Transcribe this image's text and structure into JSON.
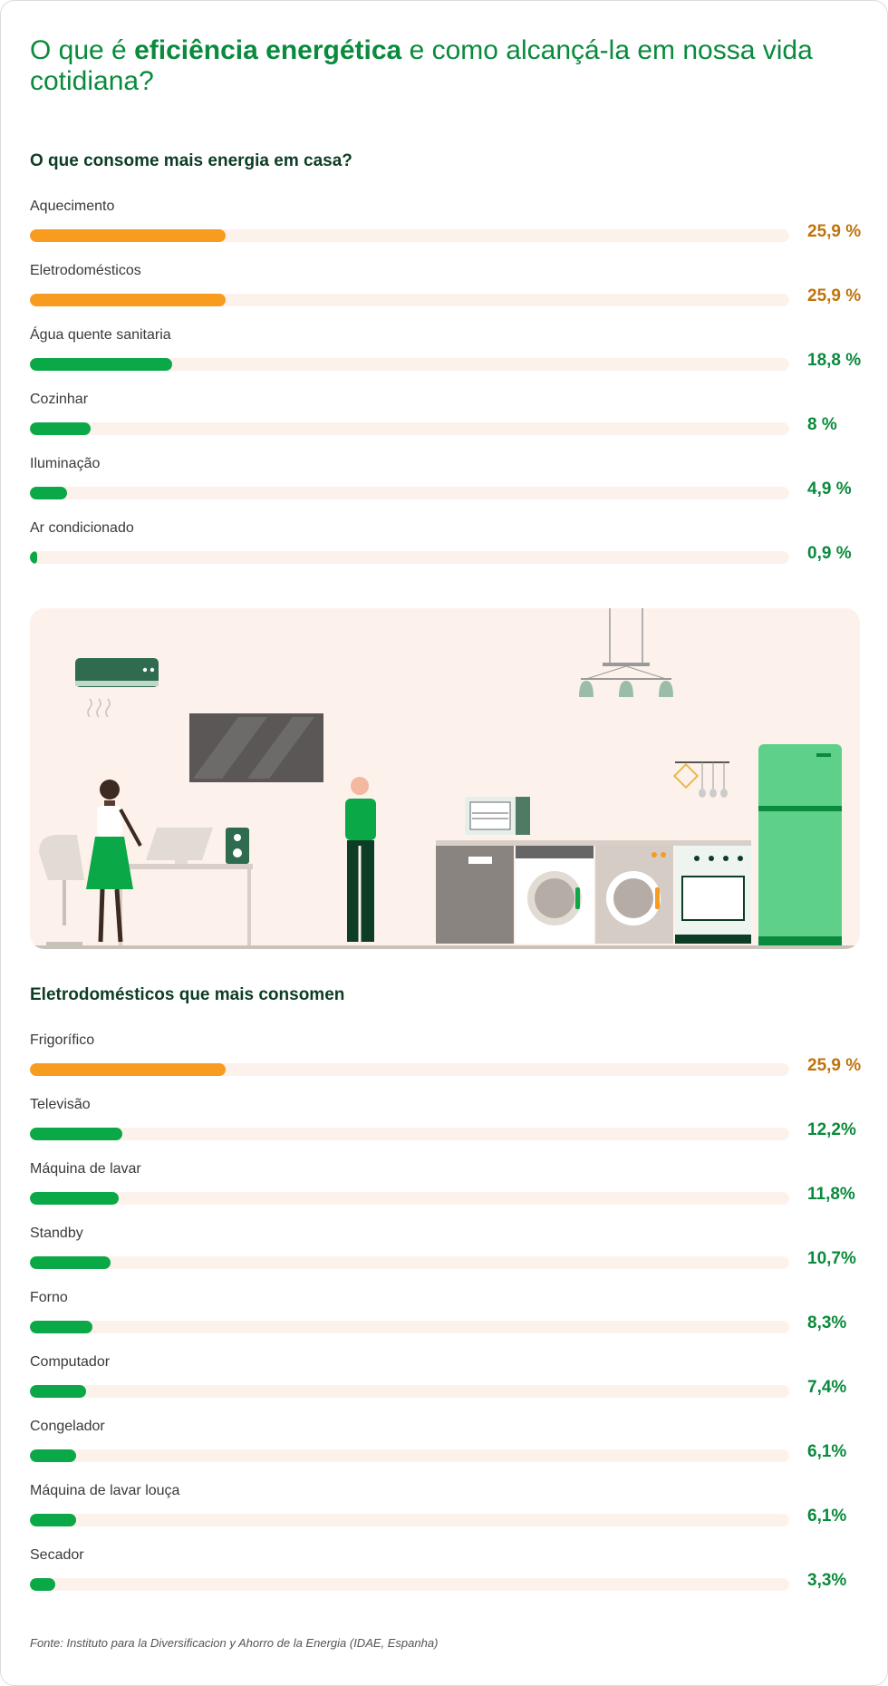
{
  "header": {
    "title_pre": "O que é ",
    "title_bold": "eficiência energética",
    "title_post": " e como alcançá-la em nossa vida cotidiana?"
  },
  "colors": {
    "highlight": "#f79c1e",
    "normal": "#0aa846",
    "track": "#fdf2eb",
    "highlight_text": "#c0730c",
    "normal_text": "#0a8a3c"
  },
  "chart_data": [
    {
      "type": "bar",
      "title": "O que consome mais energia em casa?",
      "orientation": "horizontal",
      "categories": [
        "Aquecimento",
        "Eletrodomésticos",
        "Água quente sanitaria",
        "Cozinhar",
        "Iluminação",
        "Ar condicionado"
      ],
      "values": [
        25.9,
        25.9,
        18.8,
        8,
        4.9,
        0.9
      ],
      "value_labels": [
        "25,9 %",
        "25,9 %",
        "18,8 %",
        "8 %",
        "4,9 %",
        "0,9 %"
      ],
      "highlight": [
        true,
        true,
        false,
        false,
        false,
        false
      ],
      "xlim": [
        0,
        100
      ]
    },
    {
      "type": "bar",
      "title": "Eletrodomésticos que mais consomen",
      "orientation": "horizontal",
      "categories": [
        "Frigorífico",
        "Televisão",
        "Máquina de lavar",
        "Standby",
        "Forno",
        "Computador",
        "Congelador",
        "Máquina de lavar louça",
        "Secador"
      ],
      "values": [
        25.9,
        12.2,
        11.8,
        10.7,
        8.3,
        7.4,
        6.1,
        6.1,
        3.3
      ],
      "value_labels": [
        "25,9 %",
        "12,2%",
        "11,8%",
        "10,7%",
        "8,3%",
        "7,4%",
        "6,1%",
        "6,1%",
        "3,3%"
      ],
      "highlight": [
        true,
        false,
        false,
        false,
        false,
        false,
        false,
        false,
        false
      ],
      "xlim": [
        0,
        100
      ]
    }
  ],
  "footer": {
    "source": "Fonte: Instituto para la Diversificacion y Ahorro de la Energia (IDAE, Espanha)"
  }
}
